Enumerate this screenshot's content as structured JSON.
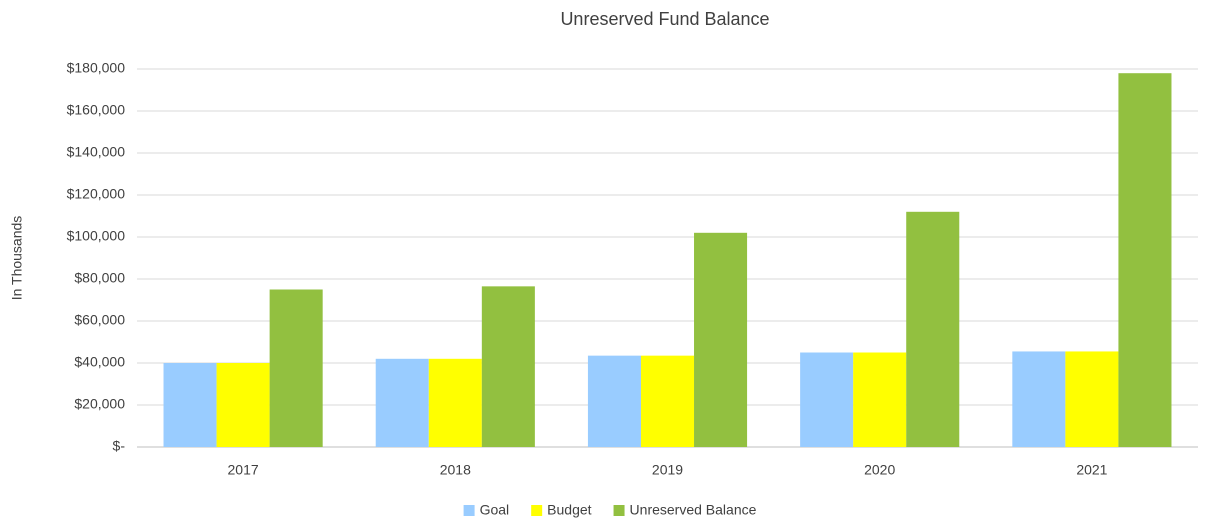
{
  "chart_data": {
    "type": "bar",
    "title": "Unreserved Fund Balance",
    "y_label": "In Thousands",
    "categories": [
      "2017",
      "2018",
      "2019",
      "2020",
      "2021"
    ],
    "series": [
      {
        "name": "Goal",
        "color": "#99ccff",
        "values": [
          40000,
          42000,
          43500,
          45000,
          45500
        ]
      },
      {
        "name": "Budget",
        "color": "#ffff00",
        "values": [
          40000,
          42000,
          43500,
          45000,
          45500
        ]
      },
      {
        "name": "Unreserved Balance",
        "color": "#92c040",
        "values": [
          75000,
          76500,
          102000,
          112000,
          178000
        ]
      }
    ],
    "ylim": [
      0,
      180000
    ],
    "yticks": [
      {
        "value": 0,
        "label": "$-"
      },
      {
        "value": 20000,
        "label": "$20,000"
      },
      {
        "value": 40000,
        "label": "$40,000"
      },
      {
        "value": 60000,
        "label": "$60,000"
      },
      {
        "value": 80000,
        "label": "$80,000"
      },
      {
        "value": 100000,
        "label": "$100,000"
      },
      {
        "value": 120000,
        "label": "$120,000"
      },
      {
        "value": 140000,
        "label": "$140,000"
      },
      {
        "value": 160000,
        "label": "$160,000"
      },
      {
        "value": 180000,
        "label": "$180,000"
      }
    ],
    "grid": true,
    "legend": "bottom"
  }
}
